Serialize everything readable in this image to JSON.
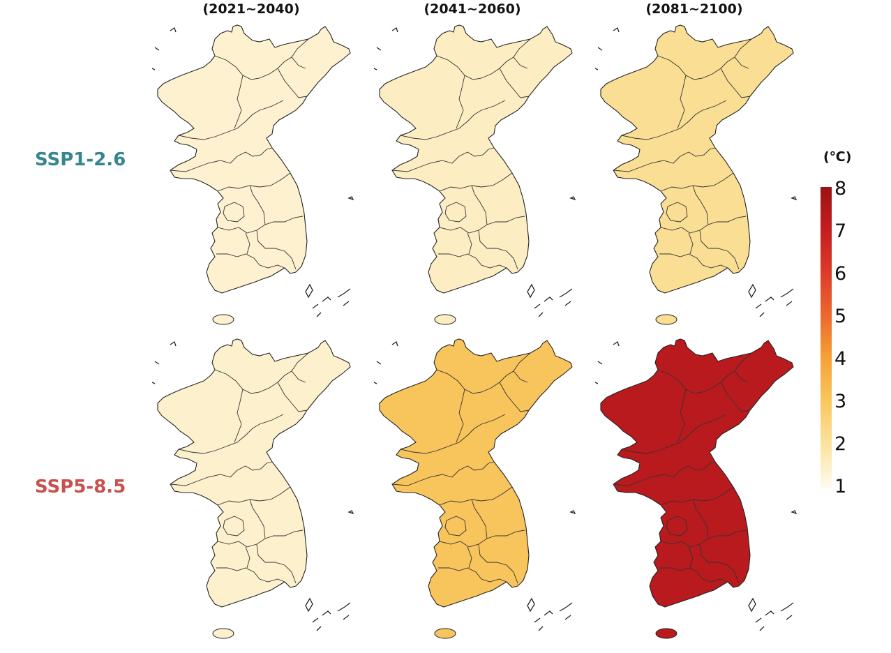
{
  "periods": [
    "(2021~2040)",
    "(2041~2060)",
    "(2081~2100)"
  ],
  "scenarios": [
    {
      "label": "SSP1-2.6",
      "color": "#35878e"
    },
    {
      "label": "SSP5-8.5",
      "color": "#c8504e"
    }
  ],
  "legend": {
    "unit": "(℃)",
    "ticks": [
      "8",
      "7",
      "6",
      "5",
      "4",
      "3",
      "2",
      "1"
    ],
    "min": 1,
    "max": 8
  },
  "panels": [
    {
      "scenario": "SSP1-2.6",
      "period": "(2021~2040)",
      "fill": "#fdf1cf"
    },
    {
      "scenario": "SSP1-2.6",
      "period": "(2041~2060)",
      "fill": "#fcedc3"
    },
    {
      "scenario": "SSP1-2.6",
      "period": "(2081~2100)",
      "fill": "#f9de93"
    },
    {
      "scenario": "SSP5-8.5",
      "period": "(2021~2040)",
      "fill": "#fdf0cc"
    },
    {
      "scenario": "SSP5-8.5",
      "period": "(2041~2060)",
      "fill": "#f8c45c"
    },
    {
      "scenario": "SSP5-8.5",
      "period": "(2081~2100)",
      "fill": "#b81a1e"
    }
  ]
}
